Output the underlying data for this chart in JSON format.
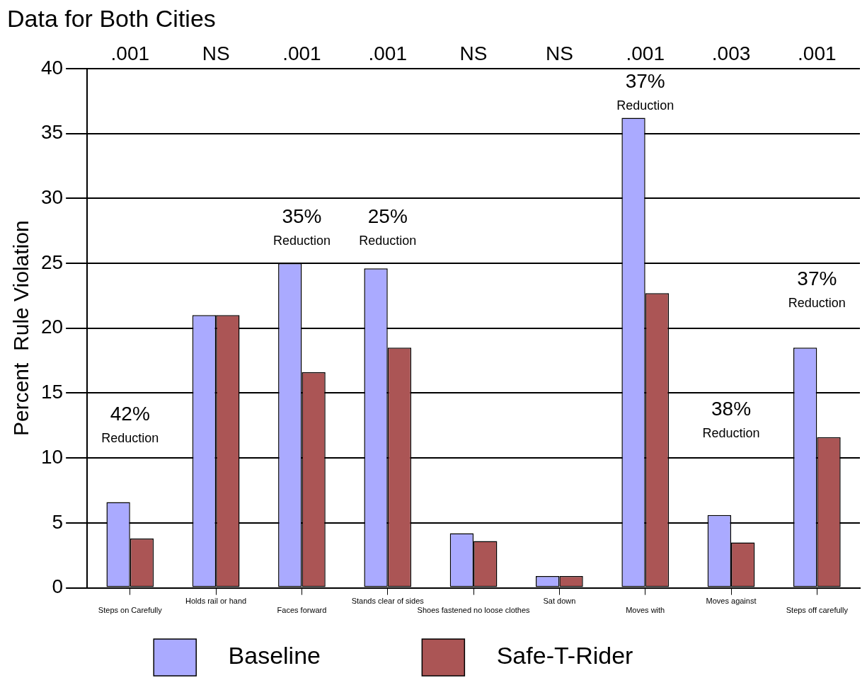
{
  "chart_data": {
    "type": "bar",
    "title": "Data for Both Cities",
    "ylabel": "Percent  Rule Violation",
    "categories": [
      "Steps on Carefully",
      "Holds rail or hand",
      "Faces forward",
      "Stands clear of sides",
      "Shoes fastened no loose clothes",
      "Sat down",
      "Moves with",
      "Moves against",
      "Steps off carefully"
    ],
    "series": [
      {
        "name": "Baseline",
        "color": "#aaaaff",
        "values": [
          6.6,
          21,
          25,
          24.6,
          4.2,
          0.9,
          36.2,
          5.6,
          18.5
        ]
      },
      {
        "name": "Safe-T-Rider",
        "color": "#ab5555",
        "values": [
          3.8,
          21,
          16.6,
          18.5,
          3.6,
          0.9,
          22.7,
          3.5,
          11.6
        ]
      }
    ],
    "ylim": [
      0,
      40
    ],
    "yticks": [
      0,
      5,
      10,
      15,
      20,
      25,
      30,
      35,
      40
    ],
    "grid": "y",
    "legend": "bottom",
    "annotations": [
      ".001",
      "NS",
      ".001",
      ".001",
      "NS",
      "NS",
      ".001",
      ".003",
      ".001",
      "42%\nReduction",
      "35%\nReduction",
      "25%\nReduction",
      "37%\nReduction",
      "38%\nReduction",
      "37%\nReduction"
    ]
  }
}
